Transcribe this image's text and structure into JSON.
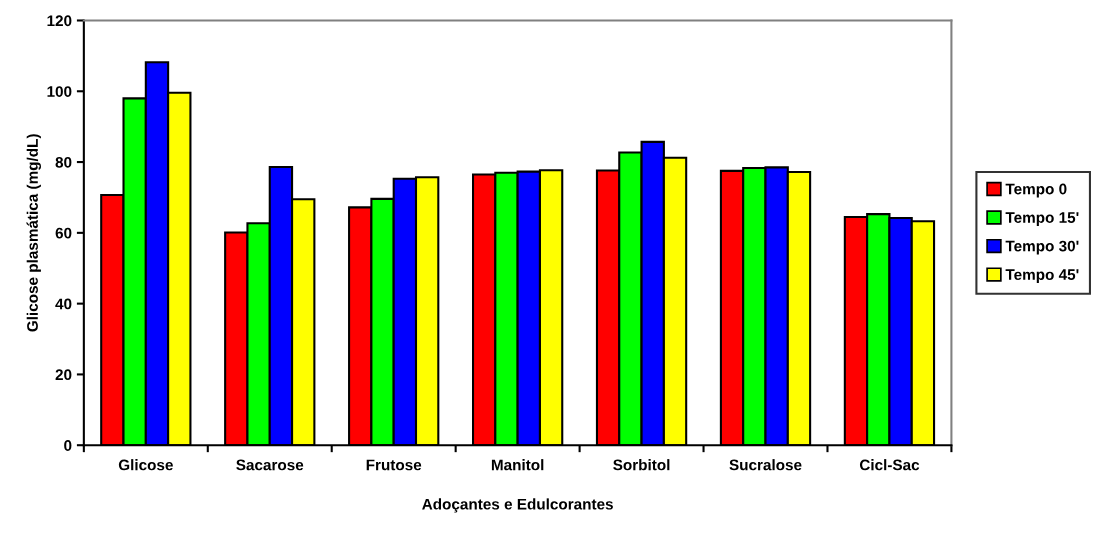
{
  "chart_data": {
    "type": "bar",
    "xlabel": "Adoçantes e Edulcorantes",
    "ylabel": "Glicose plasmática (mg/dL)",
    "categories": [
      "Glicose",
      "Sacarose",
      "Frutose",
      "Manitol",
      "Sorbitol",
      "Sucralose",
      "Cicl-Sac"
    ],
    "series": [
      {
        "name": "Tempo 0",
        "color": "#ff0000",
        "values": [
          70.7,
          60.1,
          67.2,
          76.5,
          77.6,
          77.5,
          64.5
        ]
      },
      {
        "name": "Tempo 15'",
        "color": "#00ff00",
        "values": [
          98.0,
          62.7,
          69.6,
          77.0,
          82.7,
          78.3,
          65.3
        ]
      },
      {
        "name": "Tempo 30'",
        "color": "#0000ff",
        "values": [
          108.2,
          78.6,
          75.3,
          77.3,
          85.7,
          78.5,
          64.2
        ]
      },
      {
        "name": "Tempo 45'",
        "color": "#ffff00",
        "values": [
          99.6,
          69.5,
          75.7,
          77.7,
          81.2,
          77.2,
          63.3
        ]
      }
    ],
    "ylim": [
      0,
      120
    ],
    "yticks": [
      0,
      20,
      40,
      60,
      80,
      100,
      120
    ],
    "grid": false,
    "legend": "right"
  }
}
